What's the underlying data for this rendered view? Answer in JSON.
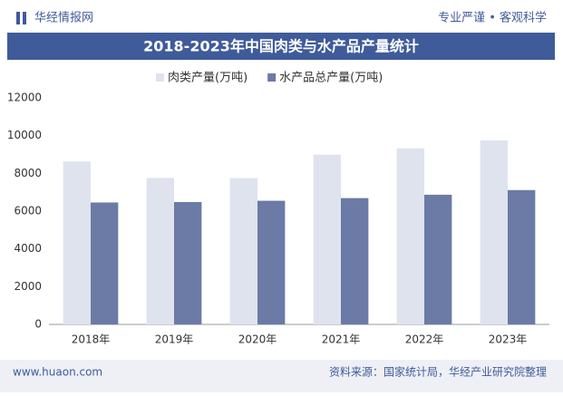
{
  "header": {
    "logo": "华经情报网",
    "slogan": "专业严谨 • 客观科学"
  },
  "chart_data": {
    "type": "bar",
    "title": "2018-2023年中国肉类与水产品产量统计",
    "categories": [
      "2018年",
      "2019年",
      "2020年",
      "2021年",
      "2022年",
      "2023年"
    ],
    "series": [
      {
        "name": "肉类产量(万吨)",
        "color": "#dfe3ee",
        "values": [
          8625,
          7759,
          7748,
          8990,
          9328,
          9748
        ]
      },
      {
        "name": "水产品总产量(万吨)",
        "color": "#6b7ba6",
        "values": [
          6458,
          6480,
          6549,
          6690,
          6869,
          7116
        ]
      }
    ],
    "ylim": [
      0,
      12000
    ],
    "yticks": [
      0,
      2000,
      4000,
      6000,
      8000,
      10000,
      12000
    ]
  },
  "footer": {
    "website": "www.huaon.com",
    "source": "资料来源：国家统计局，华经产业研究院整理"
  }
}
